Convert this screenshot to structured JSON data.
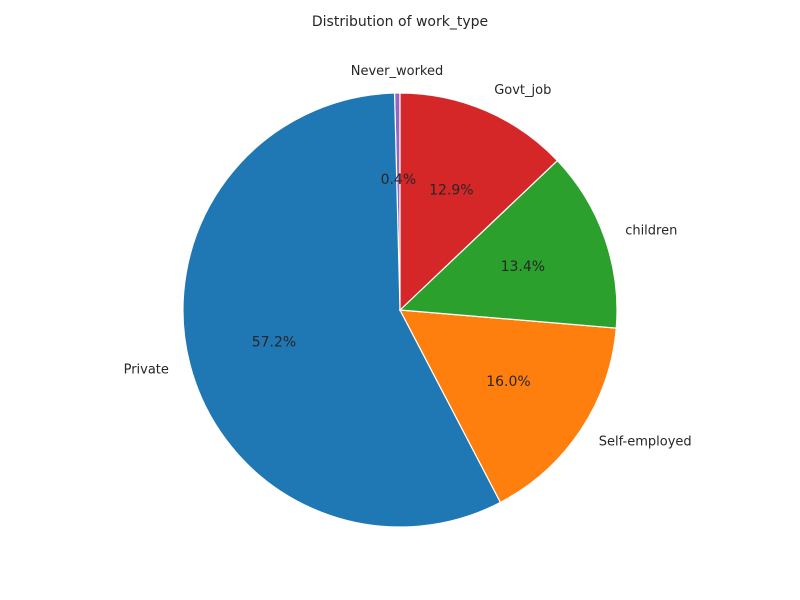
{
  "chart_data": {
    "type": "pie",
    "title": "Distribution of work_type",
    "start_angle_deg": 90,
    "direction": "counterclockwise",
    "slices": [
      {
        "label": "Never_worked",
        "value": 0.4,
        "pct_label": "0.4%",
        "color": "#9467bd"
      },
      {
        "label": "Private",
        "value": 57.2,
        "pct_label": "57.2%",
        "color": "#1f77b4"
      },
      {
        "label": "Self-employed",
        "value": 16.0,
        "pct_label": "16.0%",
        "color": "#ff7f0e"
      },
      {
        "label": "children",
        "value": 13.4,
        "pct_label": "13.4%",
        "color": "#2ca02c"
      },
      {
        "label": "Govt_job",
        "value": 12.9,
        "pct_label": "12.9%",
        "color": "#d62728"
      }
    ]
  }
}
